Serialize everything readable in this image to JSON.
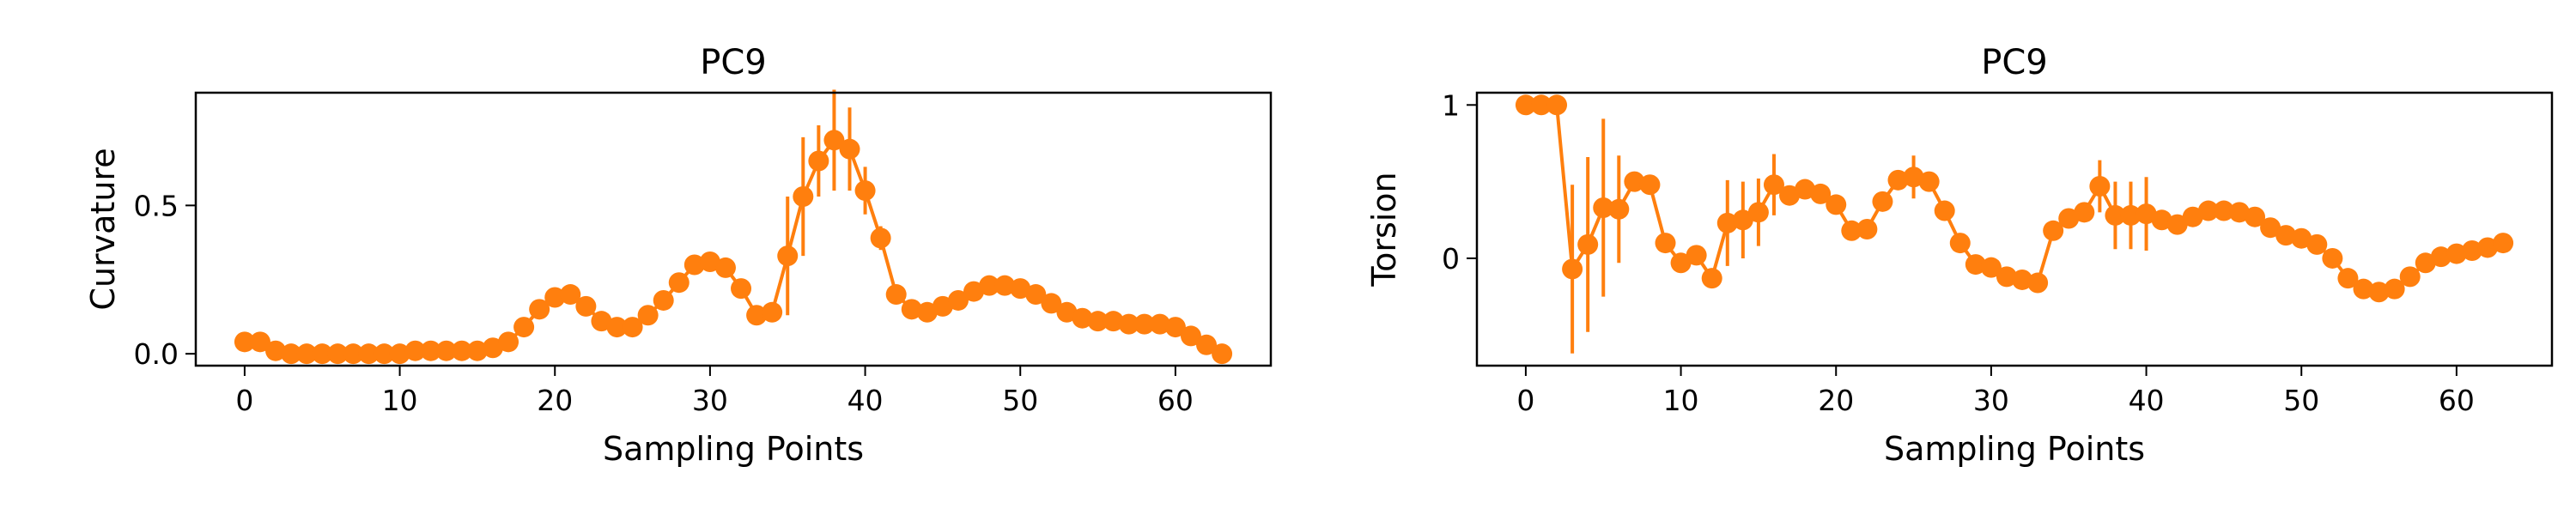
{
  "chart_data": [
    {
      "type": "line",
      "title": "PC9",
      "xlabel": "Sampling Points",
      "ylabel": "Curvature",
      "xlim": [
        -3.15,
        66.15
      ],
      "ylim": [
        -0.04,
        0.88
      ],
      "xticks": [
        0,
        10,
        20,
        30,
        40,
        50,
        60
      ],
      "yticks": [
        0.0,
        0.5
      ],
      "ytick_labels": [
        "0.0",
        "0.5"
      ],
      "series": [
        {
          "color": "#ff7f0e",
          "x": [
            0,
            1,
            2,
            3,
            4,
            5,
            6,
            7,
            8,
            9,
            10,
            11,
            12,
            13,
            14,
            15,
            16,
            17,
            18,
            19,
            20,
            21,
            22,
            23,
            24,
            25,
            26,
            27,
            28,
            29,
            30,
            31,
            32,
            33,
            34,
            35,
            36,
            37,
            38,
            39,
            40,
            41,
            42,
            43,
            44,
            45,
            46,
            47,
            48,
            49,
            50,
            51,
            52,
            53,
            54,
            55,
            56,
            57,
            58,
            59,
            60,
            61,
            62,
            63
          ],
          "y": [
            0.04,
            0.04,
            0.01,
            0.0,
            0.0,
            0.0,
            0.0,
            0.0,
            0.0,
            0.0,
            0.0,
            0.01,
            0.01,
            0.01,
            0.01,
            0.01,
            0.02,
            0.04,
            0.09,
            0.15,
            0.19,
            0.2,
            0.16,
            0.11,
            0.09,
            0.09,
            0.13,
            0.18,
            0.24,
            0.3,
            0.31,
            0.29,
            0.22,
            0.13,
            0.14,
            0.33,
            0.53,
            0.65,
            0.72,
            0.69,
            0.55,
            0.39,
            0.2,
            0.15,
            0.14,
            0.16,
            0.18,
            0.21,
            0.23,
            0.23,
            0.22,
            0.2,
            0.17,
            0.14,
            0.12,
            0.11,
            0.11,
            0.1,
            0.1,
            0.1,
            0.09,
            0.06,
            0.03,
            0.0
          ],
          "err": [
            0,
            0,
            0,
            0,
            0,
            0,
            0,
            0,
            0,
            0,
            0,
            0,
            0,
            0,
            0,
            0,
            0,
            0,
            0,
            0,
            0,
            0,
            0,
            0,
            0,
            0,
            0,
            0,
            0,
            0,
            0,
            0,
            0,
            0,
            0,
            0.2,
            0.2,
            0.12,
            0.17,
            0.14,
            0.08,
            0.04,
            0,
            0,
            0,
            0,
            0,
            0,
            0,
            0,
            0,
            0,
            0,
            0,
            0,
            0,
            0,
            0,
            0,
            0,
            0,
            0,
            0,
            0
          ]
        }
      ]
    },
    {
      "type": "line",
      "title": "PC9",
      "xlabel": "Sampling Points",
      "ylabel": "Torsion",
      "xlim": [
        -3.15,
        66.15
      ],
      "ylim": [
        -0.7,
        1.08
      ],
      "xticks": [
        0,
        10,
        20,
        30,
        40,
        50,
        60
      ],
      "yticks": [
        0,
        1
      ],
      "ytick_labels": [
        "0",
        "1"
      ],
      "series": [
        {
          "color": "#ff7f0e",
          "x": [
            0,
            1,
            2,
            3,
            4,
            5,
            6,
            7,
            8,
            9,
            10,
            11,
            12,
            13,
            14,
            15,
            16,
            17,
            18,
            19,
            20,
            21,
            22,
            23,
            24,
            25,
            26,
            27,
            28,
            29,
            30,
            31,
            32,
            33,
            34,
            35,
            36,
            37,
            38,
            39,
            40,
            41,
            42,
            43,
            44,
            45,
            46,
            47,
            48,
            49,
            50,
            51,
            52,
            53,
            54,
            55,
            56,
            57,
            58,
            59,
            60,
            61,
            62,
            63
          ],
          "y": [
            1.0,
            1.0,
            1.0,
            -0.07,
            0.09,
            0.33,
            0.32,
            0.5,
            0.48,
            0.1,
            -0.03,
            0.02,
            -0.13,
            0.23,
            0.25,
            0.3,
            0.48,
            0.41,
            0.45,
            0.42,
            0.35,
            0.18,
            0.19,
            0.37,
            0.51,
            0.53,
            0.5,
            0.31,
            0.1,
            -0.04,
            -0.06,
            -0.12,
            -0.14,
            -0.16,
            0.18,
            0.26,
            0.3,
            0.47,
            0.28,
            0.28,
            0.29,
            0.25,
            0.22,
            0.27,
            0.31,
            0.31,
            0.3,
            0.27,
            0.2,
            0.15,
            0.13,
            0.09,
            0.0,
            -0.13,
            -0.2,
            -0.22,
            -0.2,
            -0.12,
            -0.03,
            0.01,
            0.03,
            0.05,
            0.07,
            0.1
          ],
          "err": [
            0,
            0,
            0,
            0.55,
            0.57,
            0.58,
            0.35,
            0,
            0,
            0,
            0,
            0,
            0,
            0.28,
            0.25,
            0.22,
            0.2,
            0,
            0,
            0,
            0,
            0,
            0,
            0,
            0,
            0.14,
            0,
            0,
            0,
            0,
            0,
            0,
            0,
            0,
            0,
            0,
            0,
            0.17,
            0.22,
            0.22,
            0.24,
            0,
            0,
            0,
            0,
            0,
            0,
            0,
            0,
            0,
            0,
            0,
            0,
            0,
            0,
            0,
            0,
            0,
            0,
            0,
            0,
            0,
            0,
            0
          ]
        }
      ]
    }
  ]
}
